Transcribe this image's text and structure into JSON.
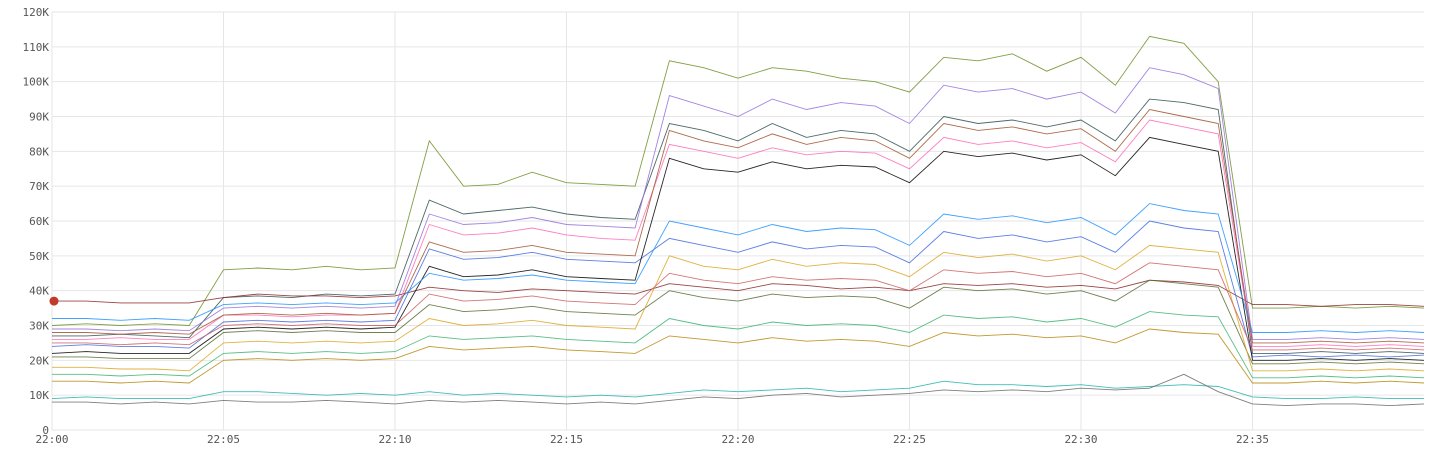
{
  "chart_data": {
    "type": "line",
    "title": "",
    "xlabel": "",
    "ylabel": "",
    "grid": true,
    "legend": "none",
    "xlim": [
      "22:00",
      "22:40"
    ],
    "ylim": [
      0,
      120000
    ],
    "y_ticks": [
      {
        "value": 0,
        "label": "0"
      },
      {
        "value": 10000,
        "label": "10K"
      },
      {
        "value": 20000,
        "label": "20K"
      },
      {
        "value": 30000,
        "label": "30K"
      },
      {
        "value": 40000,
        "label": "40K"
      },
      {
        "value": 50000,
        "label": "50K"
      },
      {
        "value": 60000,
        "label": "60K"
      },
      {
        "value": 70000,
        "label": "70K"
      },
      {
        "value": 80000,
        "label": "80K"
      },
      {
        "value": 90000,
        "label": "90K"
      },
      {
        "value": 100000,
        "label": "100K"
      },
      {
        "value": 110000,
        "label": "110K"
      },
      {
        "value": 120000,
        "label": "120K"
      }
    ],
    "x_ticks": [
      {
        "value": "22:00",
        "label": "22:00"
      },
      {
        "value": "22:05",
        "label": "22:05"
      },
      {
        "value": "22:10",
        "label": "22:10"
      },
      {
        "value": "22:15",
        "label": "22:15"
      },
      {
        "value": "22:20",
        "label": "22:20"
      },
      {
        "value": "22:25",
        "label": "22:25"
      },
      {
        "value": "22:30",
        "label": "22:30"
      },
      {
        "value": "22:35",
        "label": "22:35"
      }
    ],
    "x": [
      "22:00",
      "22:01",
      "22:02",
      "22:03",
      "22:04",
      "22:05",
      "22:06",
      "22:07",
      "22:08",
      "22:09",
      "22:10",
      "22:11",
      "22:12",
      "22:13",
      "22:14",
      "22:15",
      "22:16",
      "22:17",
      "22:18",
      "22:19",
      "22:20",
      "22:21",
      "22:22",
      "22:23",
      "22:24",
      "22:25",
      "22:26",
      "22:27",
      "22:28",
      "22:29",
      "22:30",
      "22:31",
      "22:32",
      "22:33",
      "22:34",
      "22:35",
      "22:36",
      "22:37",
      "22:38",
      "22:39",
      "22:40"
    ],
    "series": [
      {
        "color": "#2f4f4f",
        "values": [
          27000,
          27000,
          27500,
          27000,
          26500,
          38000,
          38500,
          38000,
          39000,
          38500,
          39000,
          66000,
          62000,
          63000,
          64000,
          62000,
          61000,
          60500,
          88000,
          86000,
          83000,
          88000,
          84000,
          86000,
          85000,
          80000,
          90000,
          88000,
          89000,
          87000,
          89000,
          83000,
          95000,
          94000,
          92000,
          22000,
          22000,
          22500,
          22000,
          22500,
          22000
        ]
      },
      {
        "color": "#6b8e23",
        "values": [
          30000,
          30500,
          30000,
          30500,
          30000,
          46000,
          46500,
          46000,
          47000,
          46000,
          46500,
          83000,
          70000,
          70500,
          74000,
          71000,
          70500,
          70000,
          106000,
          104000,
          101000,
          104000,
          103000,
          101000,
          100000,
          97000,
          107000,
          106000,
          108000,
          103000,
          107000,
          99000,
          113000,
          111000,
          100000,
          35000,
          35000,
          35500,
          35000,
          35500,
          35000
        ]
      },
      {
        "color": "#8b2323",
        "values": [
          37000,
          37000,
          36500,
          36500,
          36500,
          38000,
          39000,
          38500,
          38500,
          38000,
          38500,
          41000,
          40000,
          39500,
          40500,
          40000,
          39500,
          39000,
          42000,
          41000,
          40000,
          42000,
          41500,
          40500,
          41000,
          40000,
          42000,
          41500,
          42000,
          41000,
          41500,
          40500,
          43000,
          42500,
          41500,
          36000,
          36000,
          35500,
          36000,
          36000,
          35500
        ]
      },
      {
        "color": "#4169e1",
        "values": [
          24000,
          24500,
          24000,
          24000,
          23500,
          31000,
          31500,
          31000,
          31500,
          31000,
          31500,
          52000,
          49000,
          49500,
          51000,
          49000,
          48500,
          48000,
          55000,
          53000,
          51000,
          54000,
          52000,
          53000,
          52500,
          48000,
          57000,
          55000,
          56000,
          54000,
          55500,
          51000,
          60000,
          58000,
          57000,
          21000,
          21500,
          21000,
          21500,
          21000,
          21500
        ]
      },
      {
        "color": "#556b2f",
        "values": [
          21000,
          21000,
          20500,
          20500,
          20500,
          28000,
          28500,
          28000,
          28500,
          28000,
          28000,
          36000,
          34000,
          34500,
          35500,
          34000,
          33500,
          33000,
          40000,
          38000,
          37000,
          39000,
          38000,
          38500,
          38000,
          35000,
          41000,
          40000,
          40500,
          39000,
          40000,
          37000,
          43000,
          42000,
          41000,
          19000,
          19000,
          19500,
          19000,
          19500,
          19000
        ]
      },
      {
        "color": "#daa520",
        "values": [
          18000,
          18000,
          17500,
          17500,
          17000,
          25000,
          25500,
          25000,
          25500,
          25000,
          25500,
          32000,
          30000,
          30500,
          31500,
          30000,
          29500,
          29000,
          50000,
          47000,
          46000,
          49000,
          47000,
          48000,
          47500,
          44000,
          51000,
          49500,
          50500,
          48500,
          50000,
          46000,
          53000,
          52000,
          51000,
          17000,
          17000,
          17500,
          17000,
          17500,
          17000
        ]
      },
      {
        "color": "#20b2aa",
        "values": [
          9000,
          9500,
          9000,
          9000,
          9000,
          11000,
          11000,
          10500,
          10000,
          10500,
          10000,
          11000,
          10000,
          10500,
          10000,
          9500,
          10000,
          9500,
          10500,
          11500,
          11000,
          11500,
          12000,
          11000,
          11500,
          12000,
          14000,
          13000,
          13000,
          12500,
          13000,
          12000,
          12500,
          13000,
          12500,
          9500,
          9000,
          9000,
          9500,
          9000,
          9000
        ]
      },
      {
        "color": "#696969",
        "values": [
          8000,
          8000,
          7500,
          8000,
          7500,
          8500,
          8000,
          8000,
          8500,
          8000,
          7500,
          8500,
          8000,
          8500,
          8000,
          7500,
          8000,
          7500,
          8500,
          9500,
          9000,
          10000,
          10500,
          9500,
          10000,
          10500,
          11500,
          11000,
          11500,
          11000,
          12000,
          11500,
          12000,
          16000,
          11000,
          7500,
          7000,
          7500,
          7500,
          7000,
          7500
        ]
      },
      {
        "color": "#ff69b4",
        "values": [
          26000,
          26000,
          26500,
          26000,
          26000,
          33000,
          33000,
          32500,
          33000,
          33000,
          33500,
          59000,
          56000,
          56500,
          58000,
          56000,
          55000,
          54500,
          82000,
          80000,
          78000,
          81000,
          79000,
          80000,
          79500,
          75000,
          84000,
          82000,
          83000,
          81000,
          82500,
          77000,
          89000,
          87000,
          85000,
          24000,
          24000,
          24500,
          24000,
          24500,
          24000
        ]
      },
      {
        "color": "#9370db",
        "values": [
          29000,
          29000,
          28500,
          29000,
          28500,
          35000,
          35500,
          35000,
          35500,
          35000,
          35500,
          62000,
          59000,
          59500,
          61000,
          59000,
          58500,
          58000,
          96000,
          93000,
          90000,
          95000,
          92000,
          94000,
          93000,
          88000,
          99000,
          97000,
          98000,
          95000,
          97000,
          91000,
          104000,
          102000,
          98000,
          26000,
          26000,
          26500,
          26000,
          26500,
          26000
        ]
      },
      {
        "color": "#000000",
        "values": [
          22000,
          22500,
          22000,
          22000,
          22000,
          29000,
          29500,
          29000,
          29500,
          29000,
          29500,
          47000,
          44000,
          44500,
          46000,
          44000,
          43500,
          43000,
          78000,
          75000,
          74000,
          77000,
          75000,
          76000,
          75500,
          71000,
          80000,
          78500,
          79500,
          77500,
          79000,
          73000,
          84000,
          82000,
          80000,
          20000,
          20000,
          20500,
          20000,
          20500,
          20000
        ]
      },
      {
        "color": "#cd5c5c",
        "values": [
          25000,
          25000,
          24500,
          25000,
          24500,
          30000,
          30500,
          30000,
          30500,
          30000,
          30000,
          39000,
          37000,
          37500,
          38500,
          37000,
          36500,
          36000,
          45000,
          43000,
          42000,
          44000,
          43000,
          43500,
          43000,
          40000,
          46000,
          45000,
          45500,
          44000,
          45000,
          42000,
          48000,
          47000,
          46000,
          23000,
          23000,
          23500,
          23000,
          23500,
          23000
        ]
      },
      {
        "color": "#3cb371",
        "values": [
          16000,
          16000,
          15500,
          16000,
          15500,
          22000,
          22500,
          22000,
          22500,
          22000,
          22500,
          27000,
          26000,
          26500,
          27000,
          26000,
          25500,
          25000,
          32000,
          30000,
          29000,
          31000,
          30000,
          30500,
          30000,
          28000,
          33000,
          32000,
          32500,
          31000,
          32000,
          29500,
          34000,
          33000,
          32500,
          15000,
          15000,
          15500,
          15000,
          15500,
          15000
        ]
      },
      {
        "color": "#b8860b",
        "values": [
          14000,
          14000,
          13500,
          14000,
          13500,
          20000,
          20500,
          20000,
          20500,
          20000,
          20500,
          24000,
          23000,
          23500,
          24000,
          23000,
          22500,
          22000,
          27000,
          26000,
          25000,
          26500,
          25500,
          26000,
          25500,
          24000,
          28000,
          27000,
          27500,
          26500,
          27000,
          25000,
          29000,
          28000,
          27500,
          13500,
          13500,
          14000,
          13500,
          14000,
          13500
        ]
      },
      {
        "color": "#1e90ff",
        "values": [
          32000,
          32000,
          31500,
          32000,
          31500,
          36000,
          36500,
          36000,
          36500,
          36000,
          36500,
          45000,
          43000,
          43500,
          44500,
          43000,
          42500,
          42000,
          60000,
          58000,
          56000,
          59000,
          57000,
          58000,
          57500,
          53000,
          62000,
          60500,
          61500,
          59500,
          61000,
          56000,
          65000,
          63000,
          62000,
          28000,
          28000,
          28500,
          28000,
          28500,
          28000
        ]
      },
      {
        "color": "#a0522d",
        "values": [
          28000,
          28000,
          27500,
          28000,
          27500,
          33000,
          33500,
          33000,
          33500,
          33000,
          33500,
          54000,
          51000,
          51500,
          53000,
          51000,
          50500,
          50000,
          86000,
          83000,
          81000,
          85000,
          82000,
          84000,
          83000,
          78000,
          88000,
          86000,
          87000,
          85000,
          86500,
          80000,
          92000,
          90000,
          88000,
          25000,
          25000,
          25500,
          25000,
          25500,
          25000
        ]
      }
    ]
  }
}
